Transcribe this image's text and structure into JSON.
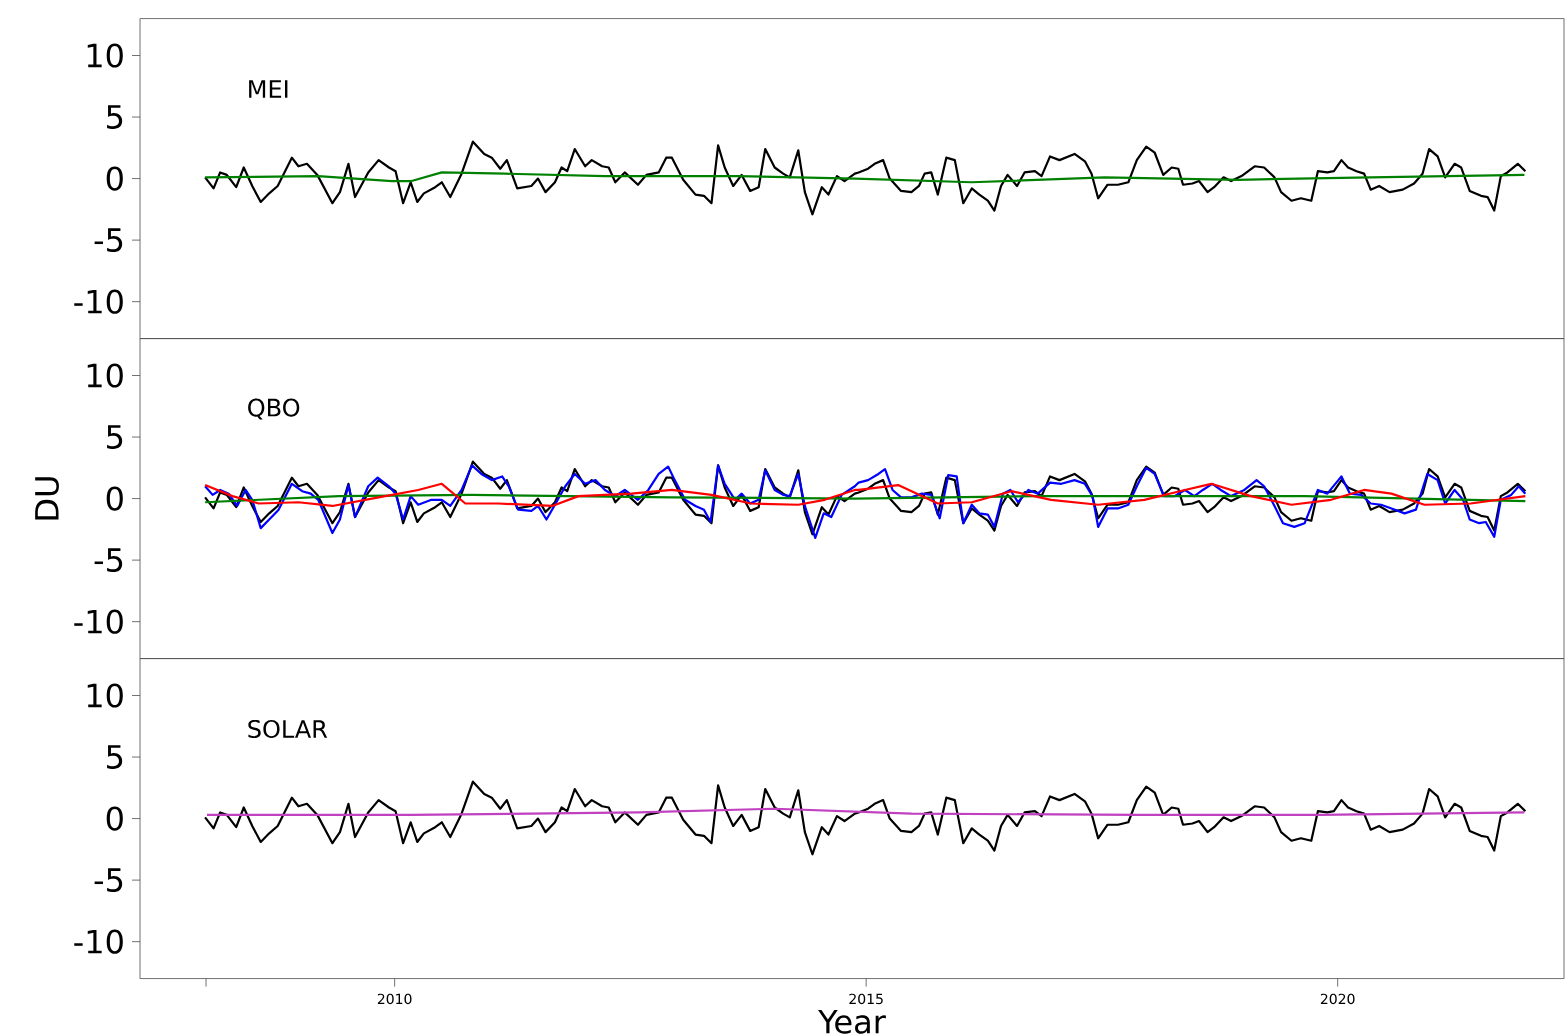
{
  "chart_data": [
    {
      "type": "line",
      "xlim": [
        2007.3,
        2022.4
      ],
      "ylim": [
        -13,
        13
      ],
      "yticks": [
        -10,
        -5,
        0,
        5,
        10
      ],
      "tick_labels": "y",
      "annotations": [
        "MEI"
      ],
      "series": [
        {
          "color": "#000000",
          "x": [
            2007.99,
            2008.08,
            2008.15,
            2008.22,
            2008.32,
            2008.4,
            2008.49,
            2008.58,
            2008.67,
            2008.76,
            2008.91,
            2008.98,
            2009.07,
            2009.18,
            2009.34,
            2009.42,
            2009.51,
            2009.58,
            2009.72,
            2009.83,
            2009.94,
            2010.01,
            2010.09,
            2010.17,
            2010.24,
            2010.31,
            2010.43,
            2010.5,
            2010.59,
            2010.71,
            2010.83,
            2010.95,
            2011.03,
            2011.12,
            2011.19,
            2011.3,
            2011.45,
            2011.52,
            2011.6,
            2011.7,
            2011.77,
            2011.83,
            2011.91,
            2012.02,
            2012.09,
            2012.2,
            2012.27,
            2012.34,
            2012.44,
            2012.58,
            2012.67,
            2012.8,
            2012.88,
            2012.94,
            2013.06,
            2013.19,
            2013.28,
            2013.36,
            2013.43,
            2013.5,
            2013.59,
            2013.68,
            2013.77,
            2013.86,
            2013.93,
            2014.03,
            2014.12,
            2014.19,
            2014.28,
            2014.35,
            2014.43,
            2014.53,
            2014.6,
            2014.69,
            2014.77,
            2014.88,
            2014.92,
            2015.02,
            2015.09,
            2015.18,
            2015.25,
            2015.37,
            2015.48,
            2015.56,
            2015.62,
            2015.69,
            2015.76,
            2015.85,
            2015.94,
            2016.03,
            2016.12,
            2016.2,
            2016.29,
            2016.36,
            2016.43,
            2016.5,
            2016.6,
            2016.68,
            2016.79,
            2016.86,
            2016.95,
            2017.05,
            2017.21,
            2017.32,
            2017.39,
            2017.46,
            2017.56,
            2017.67,
            2017.78,
            2017.87,
            2017.97,
            2018.06,
            2018.15,
            2018.24,
            2018.31,
            2018.36,
            2018.46,
            2018.53,
            2018.62,
            2018.69,
            2018.79,
            2018.87,
            2018.98,
            2019.12,
            2019.22,
            2019.33,
            2019.4,
            2019.51,
            2019.61,
            2019.72,
            2019.79,
            2019.89,
            2019.96,
            2020.04,
            2020.11,
            2020.2,
            2020.28,
            2020.35,
            2020.44,
            2020.55,
            2020.69,
            2020.81,
            2020.9,
            2020.97,
            2021.06,
            2021.14,
            2021.24,
            2021.31,
            2021.4,
            2021.52,
            2021.59,
            2021.66,
            2021.73,
            2021.8,
            2021.91,
            2021.99
          ],
          "values": [
            0.1,
            -0.8,
            0.5,
            0.3,
            -0.7,
            0.9,
            -0.6,
            -1.9,
            -1.2,
            -0.6,
            1.7,
            1.0,
            1.2,
            0.3,
            -2.0,
            -1.1,
            1.2,
            -1.5,
            0.5,
            1.5,
            0.9,
            0.6,
            -2.0,
            -0.3,
            -1.9,
            -1.2,
            -0.7,
            -0.3,
            -1.5,
            0.4,
            3.0,
            2.0,
            1.7,
            0.8,
            1.5,
            -0.8,
            -0.6,
            0.0,
            -1.1,
            -0.3,
            0.9,
            0.6,
            2.4,
            1.0,
            1.5,
            1.0,
            0.9,
            -0.3,
            0.5,
            -0.5,
            0.3,
            0.5,
            1.7,
            1.7,
            -0.1,
            -1.3,
            -1.4,
            -2.0,
            2.7,
            0.9,
            -0.6,
            0.3,
            -1.0,
            -0.7,
            2.4,
            0.9,
            0.4,
            0.1,
            2.3,
            -1.1,
            -2.9,
            -0.7,
            -1.3,
            0.2,
            -0.2,
            0.4,
            0.5,
            0.8,
            1.2,
            1.5,
            0.0,
            -1.0,
            -1.1,
            -0.6,
            0.4,
            0.5,
            -1.3,
            1.7,
            1.5,
            -2.0,
            -0.8,
            -1.3,
            -1.8,
            -2.6,
            -0.6,
            0.3,
            -0.6,
            0.5,
            0.6,
            0.2,
            1.8,
            1.5,
            2.0,
            1.4,
            0.4,
            -1.6,
            -0.5,
            -0.5,
            -0.3,
            1.5,
            2.6,
            2.1,
            0.3,
            0.9,
            0.8,
            -0.5,
            -0.4,
            -0.2,
            -1.1,
            -0.7,
            0.1,
            -0.2,
            0.2,
            1.0,
            0.9,
            0.1,
            -1.1,
            -1.8,
            -1.6,
            -1.8,
            0.6,
            0.5,
            0.6,
            1.5,
            0.9,
            0.6,
            0.4,
            -0.9,
            -0.6,
            -1.1,
            -0.9,
            -0.4,
            0.4,
            2.4,
            1.8,
            0.1,
            1.2,
            0.9,
            -1.0,
            -1.4,
            -1.5,
            -2.6,
            0.2,
            0.5,
            1.2,
            0.6
          ]
        },
        {
          "color": "#008000",
          "x": [
            2007.99,
            2009.19,
            2009.97,
            2010.18,
            2010.5,
            2011.17,
            2012.23,
            2013.64,
            2014.88,
            2016.12,
            2017.53,
            2018.94,
            2020.35,
            2021.98
          ],
          "values": [
            0.1,
            0.2,
            -0.2,
            -0.2,
            0.5,
            0.4,
            0.2,
            0.2,
            0.0,
            -0.3,
            0.1,
            -0.1,
            0.1,
            0.3
          ]
        }
      ]
    },
    {
      "type": "line",
      "xlim": [
        2007.3,
        2022.4
      ],
      "ylim": [
        -13,
        13
      ],
      "yticks": [
        -10,
        -5,
        0,
        5,
        10
      ],
      "tick_labels": "y",
      "ylabel": "DU",
      "annotations": [
        "QBO"
      ],
      "series": [
        {
          "color": "#000000",
          "x": [
            2007.99,
            2008.08,
            2008.15,
            2008.22,
            2008.32,
            2008.4,
            2008.49,
            2008.58,
            2008.67,
            2008.76,
            2008.91,
            2008.98,
            2009.07,
            2009.18,
            2009.34,
            2009.42,
            2009.51,
            2009.58,
            2009.72,
            2009.83,
            2009.94,
            2010.01,
            2010.09,
            2010.17,
            2010.24,
            2010.31,
            2010.43,
            2010.5,
            2010.59,
            2010.71,
            2010.83,
            2010.95,
            2011.03,
            2011.12,
            2011.19,
            2011.3,
            2011.45,
            2011.52,
            2011.6,
            2011.7,
            2011.77,
            2011.83,
            2011.91,
            2012.02,
            2012.09,
            2012.2,
            2012.27,
            2012.34,
            2012.44,
            2012.58,
            2012.67,
            2012.8,
            2012.88,
            2012.94,
            2013.06,
            2013.19,
            2013.28,
            2013.36,
            2013.43,
            2013.5,
            2013.59,
            2013.68,
            2013.77,
            2013.86,
            2013.93,
            2014.03,
            2014.12,
            2014.19,
            2014.28,
            2014.35,
            2014.43,
            2014.53,
            2014.6,
            2014.69,
            2014.77,
            2014.88,
            2014.92,
            2015.02,
            2015.09,
            2015.18,
            2015.25,
            2015.37,
            2015.48,
            2015.56,
            2015.62,
            2015.69,
            2015.76,
            2015.85,
            2015.94,
            2016.03,
            2016.12,
            2016.2,
            2016.29,
            2016.36,
            2016.43,
            2016.5,
            2016.6,
            2016.68,
            2016.79,
            2016.86,
            2016.95,
            2017.05,
            2017.21,
            2017.32,
            2017.39,
            2017.46,
            2017.56,
            2017.67,
            2017.78,
            2017.87,
            2017.97,
            2018.06,
            2018.15,
            2018.24,
            2018.31,
            2018.36,
            2018.46,
            2018.53,
            2018.62,
            2018.69,
            2018.79,
            2018.87,
            2018.98,
            2019.12,
            2019.22,
            2019.33,
            2019.4,
            2019.51,
            2019.61,
            2019.72,
            2019.79,
            2019.89,
            2019.96,
            2020.04,
            2020.11,
            2020.2,
            2020.28,
            2020.35,
            2020.44,
            2020.55,
            2020.69,
            2020.81,
            2020.9,
            2020.97,
            2021.06,
            2021.14,
            2021.24,
            2021.31,
            2021.4,
            2021.52,
            2021.59,
            2021.66,
            2021.73,
            2021.8,
            2021.91,
            2021.99
          ],
          "values": [
            0.1,
            -0.8,
            0.5,
            0.3,
            -0.7,
            0.9,
            -0.6,
            -1.9,
            -1.2,
            -0.6,
            1.7,
            1.0,
            1.2,
            0.3,
            -2.0,
            -1.1,
            1.2,
            -1.5,
            0.5,
            1.5,
            0.9,
            0.6,
            -2.0,
            -0.3,
            -1.9,
            -1.2,
            -0.7,
            -0.3,
            -1.5,
            0.4,
            3.0,
            2.0,
            1.7,
            0.8,
            1.5,
            -0.8,
            -0.6,
            0.0,
            -1.1,
            -0.3,
            0.9,
            0.6,
            2.4,
            1.0,
            1.5,
            1.0,
            0.9,
            -0.3,
            0.5,
            -0.5,
            0.3,
            0.5,
            1.7,
            1.7,
            -0.1,
            -1.3,
            -1.4,
            -2.0,
            2.7,
            0.9,
            -0.6,
            0.3,
            -1.0,
            -0.7,
            2.4,
            0.9,
            0.4,
            0.1,
            2.3,
            -1.1,
            -2.9,
            -0.7,
            -1.3,
            0.2,
            -0.2,
            0.4,
            0.5,
            0.8,
            1.2,
            1.5,
            0.0,
            -1.0,
            -1.1,
            -0.6,
            0.4,
            0.5,
            -1.3,
            1.7,
            1.5,
            -2.0,
            -0.8,
            -1.3,
            -1.8,
            -2.6,
            -0.6,
            0.3,
            -0.6,
            0.5,
            0.6,
            0.2,
            1.8,
            1.5,
            2.0,
            1.4,
            0.4,
            -1.6,
            -0.5,
            -0.5,
            -0.3,
            1.5,
            2.6,
            2.1,
            0.3,
            0.9,
            0.8,
            -0.5,
            -0.4,
            -0.2,
            -1.1,
            -0.7,
            0.1,
            -0.2,
            0.2,
            1.0,
            0.9,
            0.1,
            -1.1,
            -1.8,
            -1.6,
            -1.8,
            0.6,
            0.5,
            0.6,
            1.5,
            0.9,
            0.6,
            0.4,
            -0.9,
            -0.6,
            -1.1,
            -0.9,
            -0.4,
            0.4,
            2.4,
            1.8,
            0.1,
            1.2,
            0.9,
            -1.0,
            -1.4,
            -1.5,
            -2.6,
            0.2,
            0.5,
            1.2,
            0.6
          ]
        },
        {
          "color": "#0000ff",
          "x": [
            2007.99,
            2008.07,
            2008.15,
            2008.24,
            2008.33,
            2008.42,
            2008.49,
            2008.58,
            2008.67,
            2008.77,
            2008.91,
            2009.02,
            2009.11,
            2009.19,
            2009.34,
            2009.42,
            2009.51,
            2009.58,
            2009.72,
            2009.82,
            2009.94,
            2010.01,
            2010.09,
            2010.17,
            2010.25,
            2010.39,
            2010.5,
            2010.59,
            2010.71,
            2010.82,
            2010.92,
            2011.03,
            2011.14,
            2011.21,
            2011.31,
            2011.45,
            2011.52,
            2011.61,
            2011.7,
            2011.81,
            2011.91,
            2012.02,
            2012.13,
            2012.23,
            2012.34,
            2012.44,
            2012.58,
            2012.69,
            2012.8,
            2012.9,
            2012.97,
            2013.08,
            2013.19,
            2013.28,
            2013.35,
            2013.43,
            2013.5,
            2013.61,
            2013.68,
            2013.77,
            2013.86,
            2013.93,
            2014.03,
            2014.12,
            2014.19,
            2014.28,
            2014.35,
            2014.46,
            2014.55,
            2014.63,
            2014.74,
            2014.88,
            2014.92,
            2015.02,
            2015.13,
            2015.2,
            2015.28,
            2015.37,
            2015.48,
            2015.59,
            2015.69,
            2015.78,
            2015.87,
            2015.96,
            2016.03,
            2016.12,
            2016.2,
            2016.29,
            2016.36,
            2016.45,
            2016.53,
            2016.61,
            2016.72,
            2016.82,
            2016.95,
            2017.07,
            2017.21,
            2017.32,
            2017.4,
            2017.46,
            2017.56,
            2017.67,
            2017.78,
            2017.87,
            2017.97,
            2018.06,
            2018.16,
            2018.27,
            2018.38,
            2018.48,
            2018.57,
            2018.67,
            2018.76,
            2018.87,
            2019.01,
            2019.14,
            2019.22,
            2019.33,
            2019.42,
            2019.54,
            2019.65,
            2019.79,
            2019.89,
            2020.04,
            2020.13,
            2020.25,
            2020.35,
            2020.46,
            2020.57,
            2020.71,
            2020.83,
            2020.95,
            2021.06,
            2021.14,
            2021.24,
            2021.33,
            2021.4,
            2021.5,
            2021.57,
            2021.66,
            2021.73,
            2021.84,
            2021.92,
            2021.99
          ],
          "values": [
            1.0,
            0.3,
            0.7,
            0.4,
            -0.6,
            0.7,
            -0.1,
            -2.4,
            -1.7,
            -0.9,
            1.2,
            0.6,
            0.4,
            -0.1,
            -2.8,
            -1.7,
            1.1,
            -1.5,
            1.0,
            1.7,
            1.0,
            0.4,
            -1.7,
            0.2,
            -0.5,
            -0.1,
            -0.1,
            -0.6,
            0.7,
            2.7,
            2.0,
            1.5,
            1.8,
            1.0,
            -0.9,
            -1.0,
            -0.6,
            -1.7,
            -0.5,
            1.0,
            2.0,
            1.2,
            1.5,
            0.7,
            0.2,
            0.7,
            -0.1,
            0.7,
            2.0,
            2.6,
            1.5,
            -0.1,
            -0.6,
            -0.9,
            -1.9,
            2.7,
            1.2,
            -0.1,
            0.4,
            -0.4,
            -0.1,
            2.3,
            0.7,
            0.3,
            0.2,
            2.0,
            -0.6,
            -3.2,
            -1.2,
            -1.5,
            0.3,
            1.0,
            1.3,
            1.5,
            2.0,
            2.4,
            0.7,
            0.1,
            0.1,
            0.4,
            0.3,
            -1.6,
            1.9,
            1.8,
            -2.0,
            -0.5,
            -1.2,
            -1.3,
            -2.3,
            0.4,
            0.7,
            -0.3,
            0.7,
            0.4,
            1.3,
            1.2,
            1.5,
            1.2,
            0.2,
            -2.3,
            -0.8,
            -0.8,
            -0.5,
            1.0,
            2.5,
            2.0,
            0.2,
            0.2,
            0.7,
            0.2,
            0.7,
            1.2,
            0.7,
            0.2,
            0.7,
            1.5,
            1.0,
            -0.6,
            -2.0,
            -2.3,
            -2.0,
            0.7,
            0.4,
            1.8,
            0.4,
            0.3,
            -0.4,
            -0.5,
            -0.8,
            -1.2,
            -0.9,
            2.0,
            1.5,
            -0.4,
            0.7,
            -0.1,
            -1.7,
            -2.0,
            -1.9,
            -3.1,
            -0.1,
            0.3,
            1.0,
            0.4
          ]
        },
        {
          "color": "#008000",
          "x": [
            2007.99,
            2009.41,
            2010.82,
            2012.94,
            2014.88,
            2016.82,
            2019.65,
            2021.99
          ],
          "values": [
            -0.3,
            0.2,
            0.3,
            0.1,
            0.0,
            0.2,
            0.2,
            -0.2
          ]
        },
        {
          "color": "#ff0000",
          "x": [
            2007.99,
            2008.28,
            2008.56,
            2008.98,
            2009.34,
            2009.83,
            2010.25,
            2010.5,
            2010.75,
            2011.1,
            2011.67,
            2011.95,
            2012.51,
            2012.94,
            2013.36,
            2013.78,
            2014.28,
            2014.56,
            2014.88,
            2014.92,
            2015.34,
            2015.76,
            2016.12,
            2016.54,
            2016.96,
            2017.46,
            2017.95,
            2018.38,
            2018.66,
            2019.08,
            2019.51,
            2019.93,
            2020.28,
            2020.57,
            2020.92,
            2021.41,
            2021.99
          ],
          "values": [
            1.1,
            0.2,
            -0.4,
            -0.3,
            -0.6,
            0.1,
            0.7,
            1.2,
            -0.4,
            -0.4,
            -0.6,
            0.2,
            0.4,
            0.7,
            0.3,
            -0.4,
            -0.5,
            -0.1,
            0.7,
            0.7,
            1.1,
            -0.4,
            -0.3,
            0.6,
            -0.1,
            -0.5,
            -0.1,
            0.7,
            1.2,
            0.2,
            -0.5,
            -0.1,
            0.7,
            0.4,
            -0.5,
            -0.4,
            0.2
          ]
        }
      ]
    },
    {
      "type": "line",
      "xlim": [
        2007.3,
        2022.4
      ],
      "ylim": [
        -13,
        13
      ],
      "yticks": [
        -10,
        -5,
        0,
        5,
        10
      ],
      "xticks": [
        {
          "value": 2008,
          "label": null
        },
        2010,
        2015,
        2020
      ],
      "xlabel": "Year",
      "annotations": [
        "SOLAR"
      ],
      "series": [
        {
          "color": "#000000",
          "x": [
            2007.99,
            2008.08,
            2008.15,
            2008.22,
            2008.32,
            2008.4,
            2008.49,
            2008.58,
            2008.67,
            2008.76,
            2008.91,
            2008.98,
            2009.07,
            2009.18,
            2009.34,
            2009.42,
            2009.51,
            2009.58,
            2009.72,
            2009.83,
            2009.94,
            2010.01,
            2010.09,
            2010.17,
            2010.24,
            2010.31,
            2010.43,
            2010.5,
            2010.59,
            2010.71,
            2010.83,
            2010.95,
            2011.03,
            2011.12,
            2011.19,
            2011.3,
            2011.45,
            2011.52,
            2011.6,
            2011.7,
            2011.77,
            2011.83,
            2011.91,
            2012.02,
            2012.09,
            2012.2,
            2012.27,
            2012.34,
            2012.44,
            2012.58,
            2012.67,
            2012.8,
            2012.88,
            2012.94,
            2013.06,
            2013.19,
            2013.28,
            2013.36,
            2013.43,
            2013.5,
            2013.59,
            2013.68,
            2013.77,
            2013.86,
            2013.93,
            2014.03,
            2014.12,
            2014.19,
            2014.28,
            2014.35,
            2014.43,
            2014.53,
            2014.6,
            2014.69,
            2014.77,
            2014.88,
            2014.92,
            2015.02,
            2015.09,
            2015.18,
            2015.25,
            2015.37,
            2015.48,
            2015.56,
            2015.62,
            2015.69,
            2015.76,
            2015.85,
            2015.94,
            2016.03,
            2016.12,
            2016.2,
            2016.29,
            2016.36,
            2016.43,
            2016.5,
            2016.6,
            2016.68,
            2016.79,
            2016.86,
            2016.95,
            2017.05,
            2017.21,
            2017.32,
            2017.39,
            2017.46,
            2017.56,
            2017.67,
            2017.78,
            2017.87,
            2017.97,
            2018.06,
            2018.15,
            2018.24,
            2018.31,
            2018.36,
            2018.46,
            2018.53,
            2018.62,
            2018.69,
            2018.79,
            2018.87,
            2018.98,
            2019.12,
            2019.22,
            2019.33,
            2019.4,
            2019.51,
            2019.61,
            2019.72,
            2019.79,
            2019.89,
            2019.96,
            2020.04,
            2020.11,
            2020.2,
            2020.28,
            2020.35,
            2020.44,
            2020.55,
            2020.69,
            2020.81,
            2020.9,
            2020.97,
            2021.06,
            2021.14,
            2021.24,
            2021.31,
            2021.4,
            2021.52,
            2021.59,
            2021.66,
            2021.73,
            2021.8,
            2021.91,
            2021.99
          ],
          "values": [
            0.1,
            -0.8,
            0.5,
            0.3,
            -0.7,
            0.9,
            -0.6,
            -1.9,
            -1.2,
            -0.6,
            1.7,
            1.0,
            1.2,
            0.3,
            -2.0,
            -1.1,
            1.2,
            -1.5,
            0.5,
            1.5,
            0.9,
            0.6,
            -2.0,
            -0.3,
            -1.9,
            -1.2,
            -0.7,
            -0.3,
            -1.5,
            0.4,
            3.0,
            2.0,
            1.7,
            0.8,
            1.5,
            -0.8,
            -0.6,
            0.0,
            -1.1,
            -0.3,
            0.9,
            0.6,
            2.4,
            1.0,
            1.5,
            1.0,
            0.9,
            -0.3,
            0.5,
            -0.5,
            0.3,
            0.5,
            1.7,
            1.7,
            -0.1,
            -1.3,
            -1.4,
            -2.0,
            2.7,
            0.9,
            -0.6,
            0.3,
            -1.0,
            -0.7,
            2.4,
            0.9,
            0.4,
            0.1,
            2.3,
            -1.1,
            -2.9,
            -0.7,
            -1.3,
            0.2,
            -0.2,
            0.4,
            0.5,
            0.8,
            1.2,
            1.5,
            0.0,
            -1.0,
            -1.1,
            -0.6,
            0.4,
            0.5,
            -1.3,
            1.7,
            1.5,
            -2.0,
            -0.8,
            -1.3,
            -1.8,
            -2.6,
            -0.6,
            0.3,
            -0.6,
            0.5,
            0.6,
            0.2,
            1.8,
            1.5,
            2.0,
            1.4,
            0.4,
            -1.6,
            -0.5,
            -0.5,
            -0.3,
            1.5,
            2.6,
            2.1,
            0.3,
            0.9,
            0.8,
            -0.5,
            -0.4,
            -0.2,
            -1.1,
            -0.7,
            0.1,
            -0.2,
            0.2,
            1.0,
            0.9,
            0.1,
            -1.1,
            -1.8,
            -1.6,
            -1.8,
            0.6,
            0.5,
            0.6,
            1.5,
            0.9,
            0.6,
            0.4,
            -0.9,
            -0.6,
            -1.1,
            -0.9,
            -0.4,
            0.4,
            2.4,
            1.8,
            0.1,
            1.2,
            0.9,
            -1.0,
            -1.4,
            -1.5,
            -2.6,
            0.2,
            0.5,
            1.2,
            0.6
          ]
        },
        {
          "color": "#c040c0",
          "x": [
            2008.01,
            2010.18,
            2012.59,
            2014.03,
            2015.48,
            2017.88,
            2019.81,
            2021.98
          ],
          "values": [
            0.3,
            0.3,
            0.5,
            0.8,
            0.4,
            0.3,
            0.3,
            0.5
          ]
        }
      ]
    }
  ]
}
